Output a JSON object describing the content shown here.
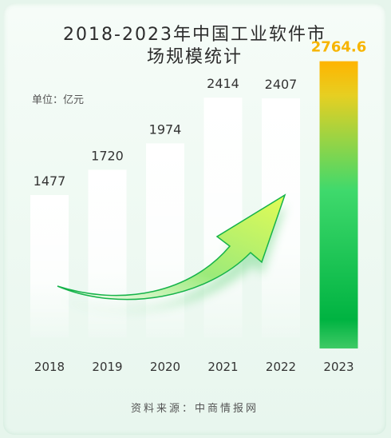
{
  "header": {
    "title_line1": "2018-2023年中国工业软件市",
    "title_line2": "场规模统计",
    "unit": "单位：亿元"
  },
  "footer": {
    "source": "资料来源：中商情报网"
  },
  "colors": {
    "highlight_value": "#f7b500",
    "highlight_bar_top": "#ffb400",
    "highlight_bar_mid": "#3fd96c",
    "highlight_bar_bottom": "#00b341",
    "arrow": "#55dd33"
  },
  "chart_data": {
    "type": "bar",
    "categories": [
      "2018",
      "2019",
      "2020",
      "2021",
      "2022",
      "2023"
    ],
    "values": [
      1477,
      1720,
      1974,
      2414,
      2407,
      2764.6
    ],
    "value_labels": [
      "1477",
      "1720",
      "1974",
      "2414",
      "2407",
      "2764.6"
    ],
    "highlight_index": 5,
    "ylabel": "",
    "ylim": [
      0,
      3000
    ],
    "grid": false,
    "legend": "none"
  }
}
